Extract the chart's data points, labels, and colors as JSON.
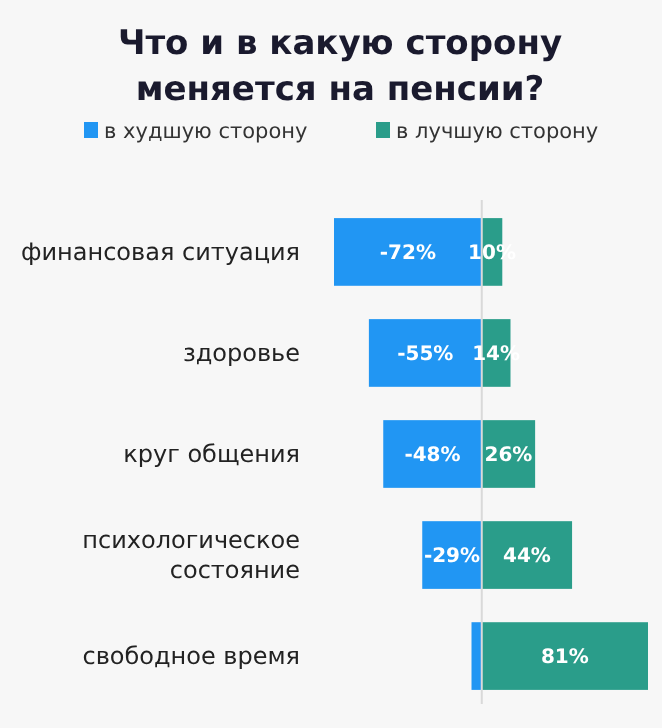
{
  "chart_data": {
    "type": "bar",
    "orientation": "horizontal",
    "stacked": true,
    "title": "Что и в какую сторону\nменяется на пенсии?",
    "categories": [
      "финансовая ситуация",
      "здоровье",
      "круг общения",
      "психологическое\nсостояние",
      "свободное время"
    ],
    "series": [
      {
        "name": "в худшую сторону",
        "color": "#2196f3",
        "values": [
          -72,
          -55,
          -48,
          -29,
          -5
        ],
        "value_labels": [
          "-72%",
          "-55%",
          "-48%",
          "-29%",
          null
        ]
      },
      {
        "name": "в лучшую сторону",
        "color": "#2a9d8a",
        "values": [
          10,
          14,
          26,
          44,
          81
        ],
        "value_labels": [
          "10%",
          "14%",
          "26%",
          "44%",
          "81%"
        ]
      }
    ],
    "legend": "top",
    "ref_lines": [
      {
        "axis": "x",
        "value": 0,
        "color": "#d9d9d9"
      }
    ]
  }
}
